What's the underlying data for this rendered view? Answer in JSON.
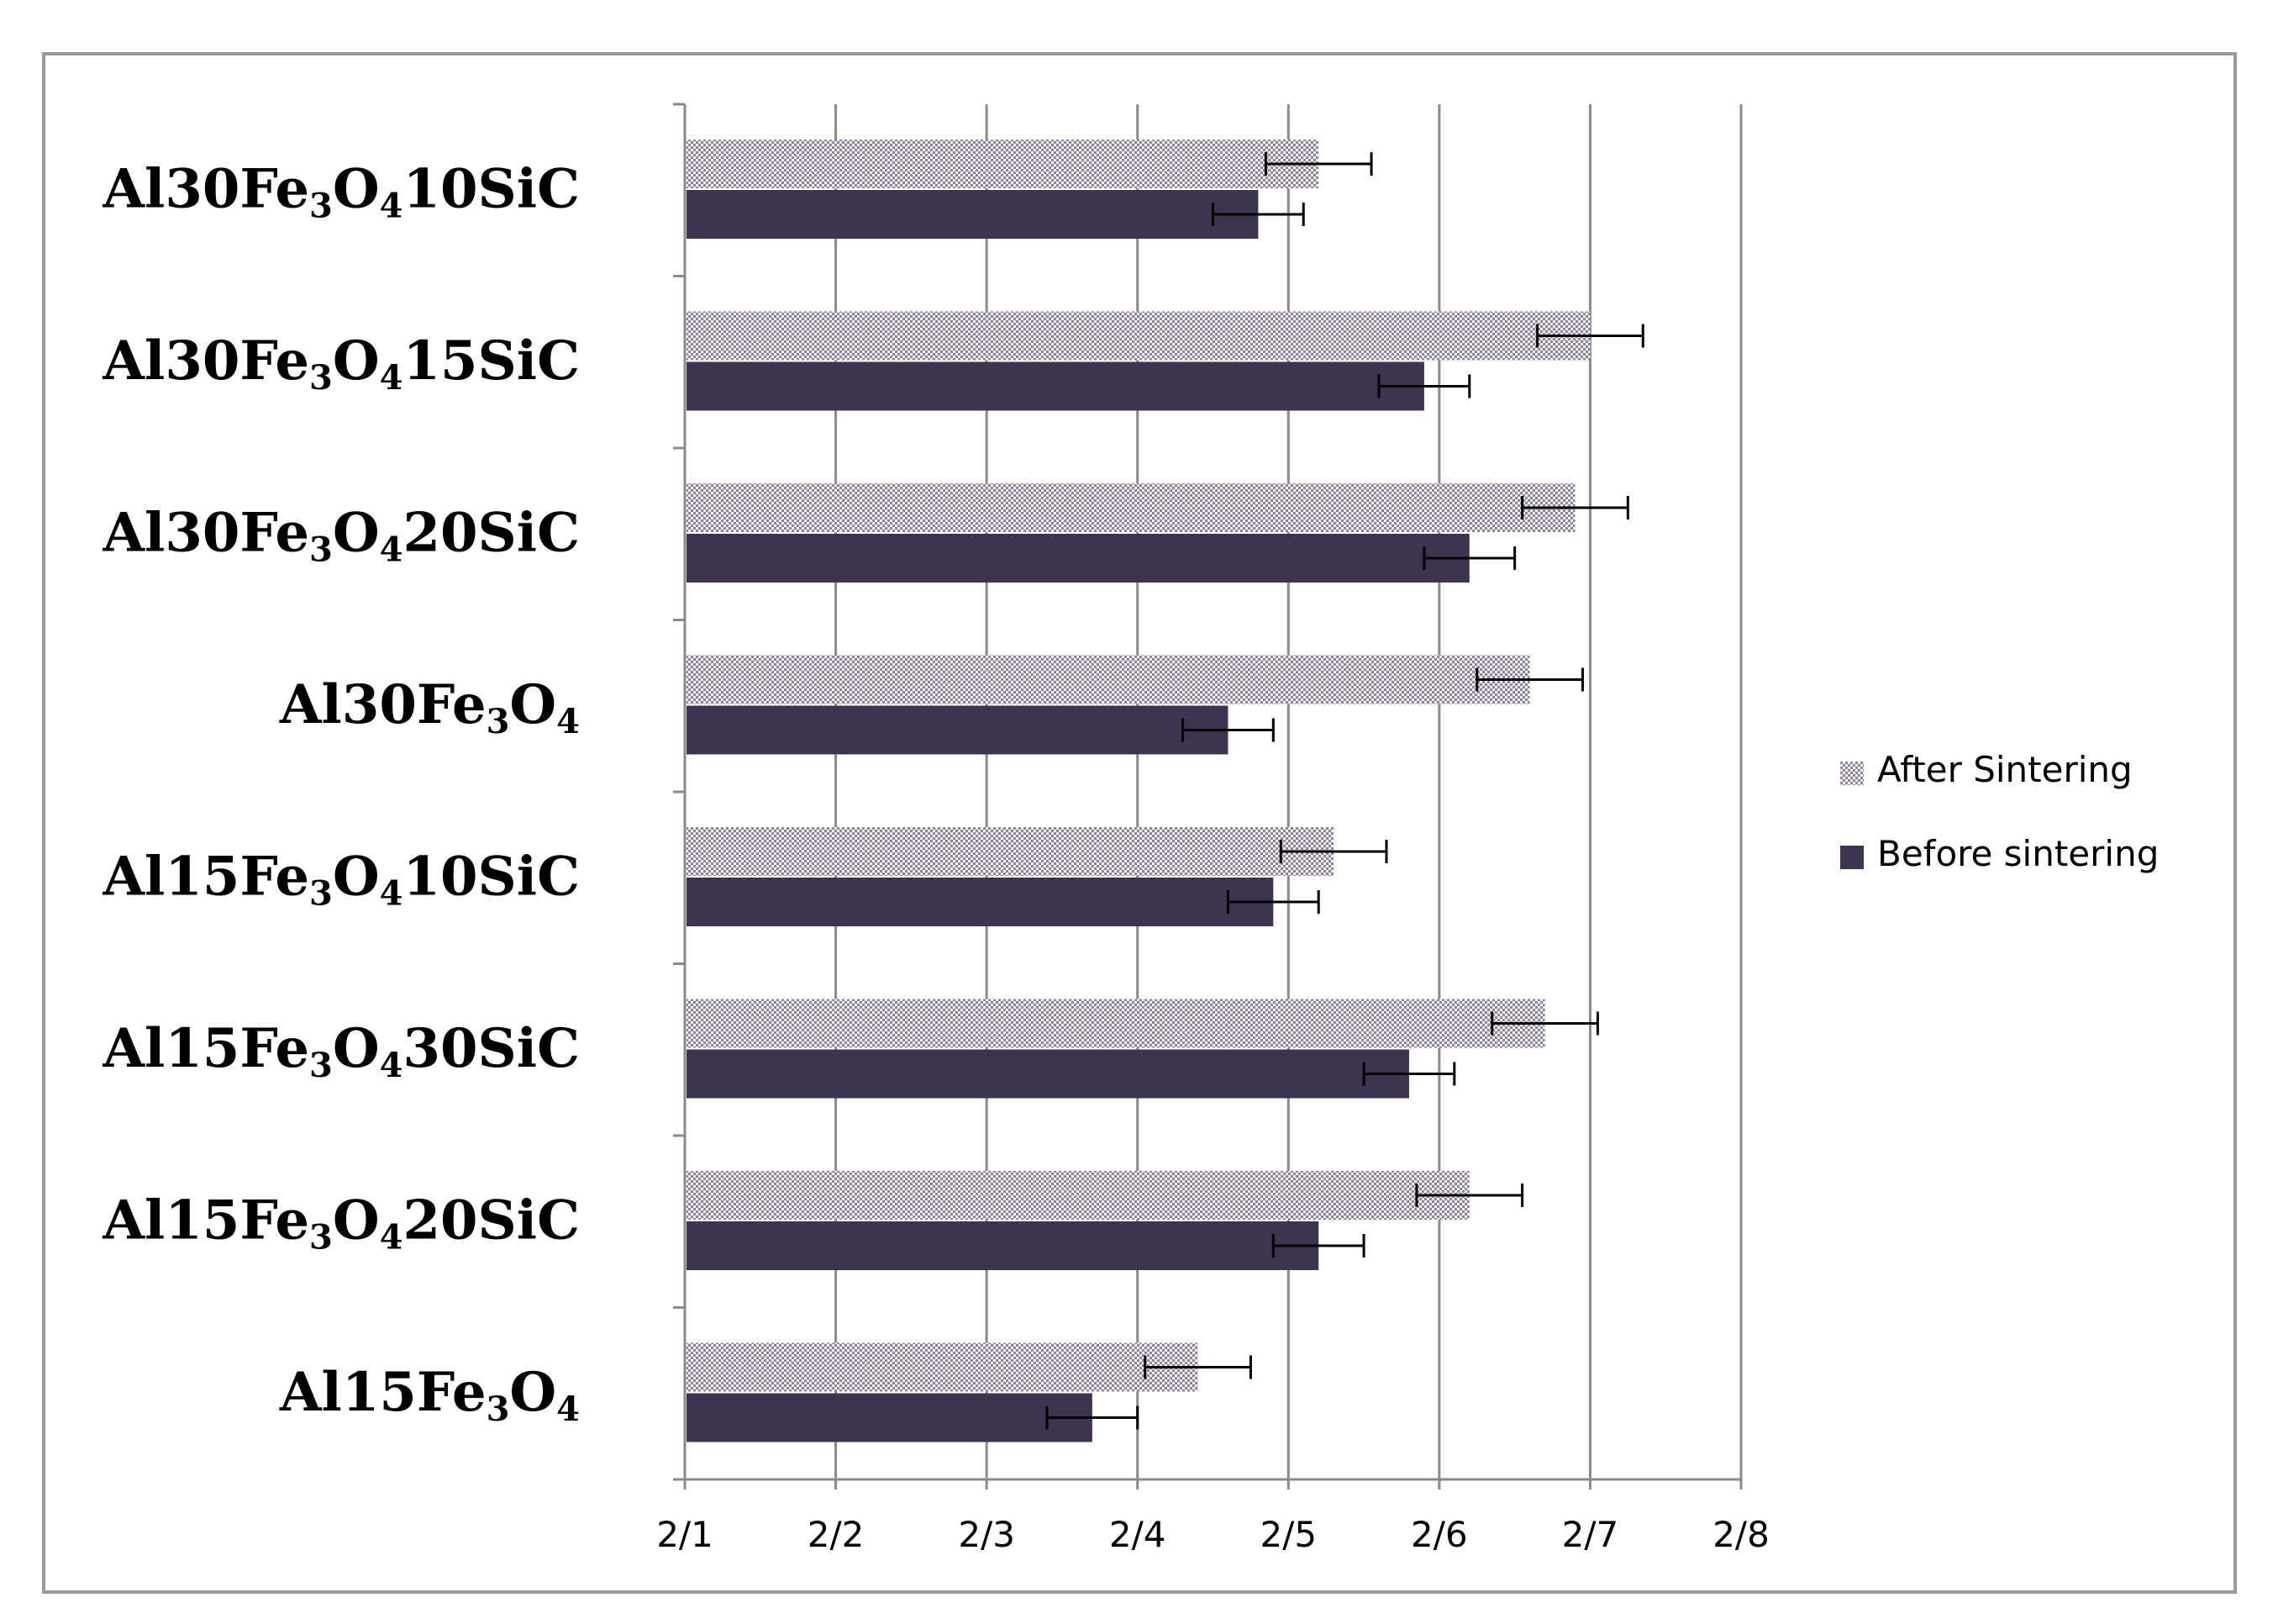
{
  "chart_data": {
    "type": "bar",
    "orientation": "horizontal",
    "title": "",
    "xlabel": "",
    "ylabel": "",
    "categories": [
      "Al30Fe3O410SiC",
      "Al30Fe3O415SiC",
      "Al30Fe3O420SiC",
      "Al30Fe3O4",
      "Al15Fe3O410SiC",
      "Al15Fe3O430SiC",
      "Al15Fe3O420SiC",
      "Al15Fe3O4"
    ],
    "category_parts": [
      {
        "t1": "Al30Fe",
        "s1": "3",
        "t2": "O",
        "s2": "4",
        "t3": "10SiC"
      },
      {
        "t1": "Al30Fe",
        "s1": "3",
        "t2": "O",
        "s2": "4",
        "t3": "15SiC"
      },
      {
        "t1": "Al30Fe",
        "s1": "3",
        "t2": "O",
        "s2": "4",
        "t3": "20SiC"
      },
      {
        "t1": "Al30Fe",
        "s1": "3",
        "t2": "O",
        "s2": "4",
        "t3": ""
      },
      {
        "t1": "Al15Fe",
        "s1": "3",
        "t2": "O",
        "s2": "4",
        "t3": "10SiC"
      },
      {
        "t1": "Al15Fe",
        "s1": "3",
        "t2": "O",
        "s2": "4",
        "t3": "30SiC"
      },
      {
        "t1": "Al15Fe",
        "s1": "3",
        "t2": "O",
        "s2": "4",
        "t3": "20SiC"
      },
      {
        "t1": "Al15Fe",
        "s1": "3",
        "t2": "O",
        "s2": "4",
        "t3": ""
      }
    ],
    "x_tick_labels": [
      "2/1",
      "2/2",
      "2/3",
      "2/4",
      "2/5",
      "2/6",
      "2/7",
      "2/8"
    ],
    "x_tick_values": [
      2.1,
      2.2,
      2.3,
      2.4,
      2.5,
      2.6,
      2.7,
      2.8
    ],
    "xlim": [
      2.1,
      2.8
    ],
    "grid": true,
    "legend_position": "right",
    "series": [
      {
        "name": "After Sintering",
        "pattern": "dotted",
        "color": "#b8b0c0",
        "values": [
          2.52,
          2.7,
          2.69,
          2.66,
          2.53,
          2.67,
          2.62,
          2.44
        ],
        "error": [
          0.035,
          0.035,
          0.035,
          0.035,
          0.035,
          0.035,
          0.035,
          0.035
        ]
      },
      {
        "name": "Before sintering",
        "pattern": "solid",
        "color": "#3e3452",
        "values": [
          2.48,
          2.59,
          2.62,
          2.46,
          2.49,
          2.58,
          2.52,
          2.37
        ],
        "error": [
          0.03,
          0.03,
          0.03,
          0.03,
          0.03,
          0.03,
          0.03,
          0.03
        ]
      }
    ]
  }
}
